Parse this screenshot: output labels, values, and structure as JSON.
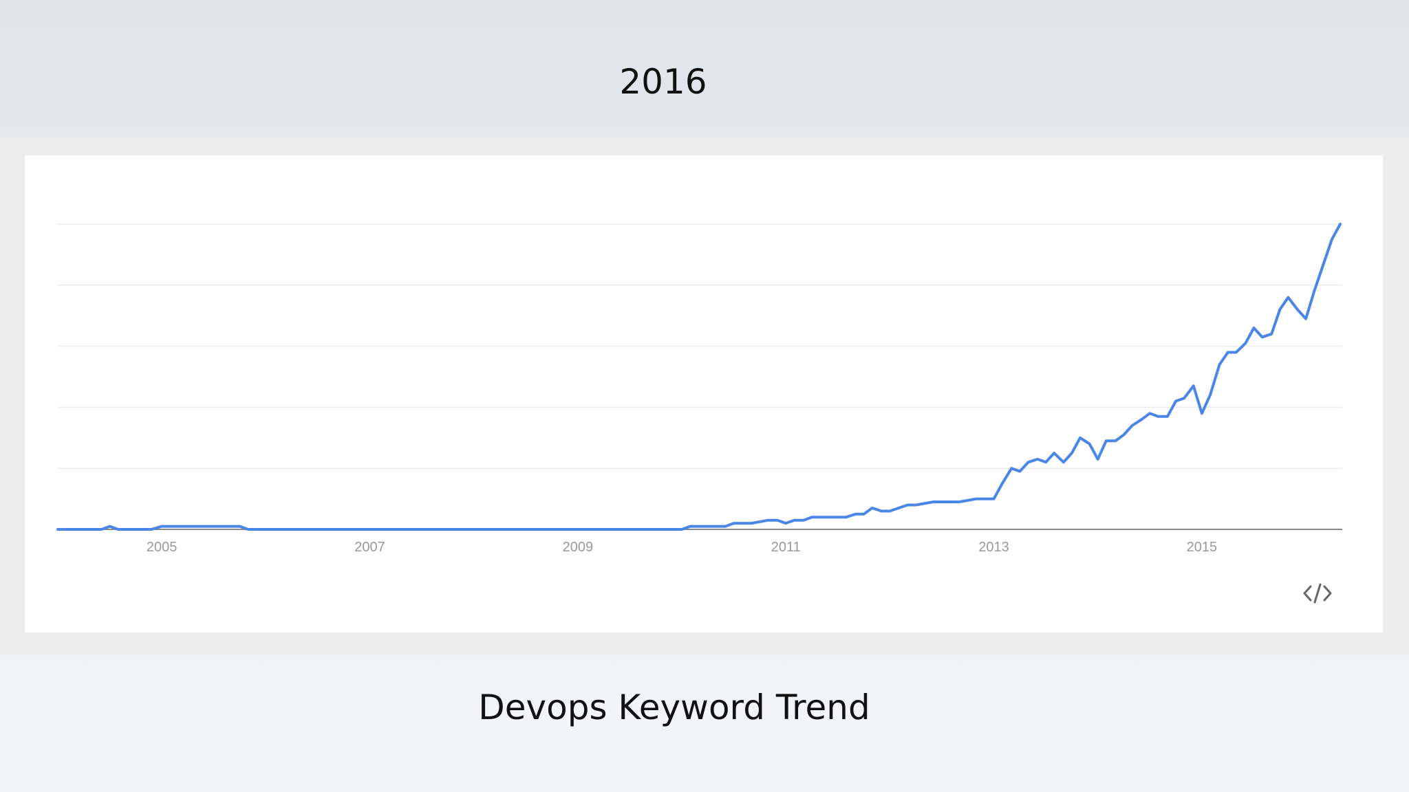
{
  "slide": {
    "title": "2016",
    "caption": "Devops Keyword Trend"
  },
  "icons": {
    "embed": "embed-code-icon"
  },
  "colors": {
    "line": "#4a86e8",
    "grid": "#ececec",
    "axis": "#888888",
    "tick_text": "#999999"
  },
  "chart_data": {
    "type": "line",
    "title": "",
    "xlabel": "",
    "ylabel": "",
    "grid": true,
    "xlim": [
      2004.0,
      2016.35
    ],
    "ylim": [
      0,
      100
    ],
    "xticks": [
      2005,
      2007,
      2009,
      2011,
      2013,
      2015
    ],
    "xtick_labels": [
      "2005",
      "2007",
      "2009",
      "2011",
      "2013",
      "2015"
    ],
    "series": [
      {
        "name": "",
        "x": [
          2004.0,
          2004.42,
          2004.5,
          2004.58,
          2004.67,
          2004.9,
          2005.0,
          2005.75,
          2005.83,
          2006.5,
          2007.5,
          2008.5,
          2009.5,
          2010.0,
          2010.08,
          2010.17,
          2010.42,
          2010.5,
          2010.67,
          2010.83,
          2010.92,
          2011.0,
          2011.08,
          2011.17,
          2011.25,
          2011.33,
          2011.42,
          2011.58,
          2011.67,
          2011.75,
          2011.83,
          2011.92,
          2012.0,
          2012.17,
          2012.25,
          2012.42,
          2012.5,
          2012.67,
          2012.83,
          2012.92,
          2013.0,
          2013.08,
          2013.17,
          2013.25,
          2013.33,
          2013.42,
          2013.5,
          2013.58,
          2013.67,
          2013.75,
          2013.83,
          2013.92,
          2014.0,
          2014.08,
          2014.17,
          2014.25,
          2014.33,
          2014.42,
          2014.5,
          2014.58,
          2014.67,
          2014.75,
          2014.83,
          2014.92,
          2015.0,
          2015.08,
          2015.17,
          2015.25,
          2015.33,
          2015.42,
          2015.5,
          2015.58,
          2015.67,
          2015.75,
          2015.83,
          2015.92,
          2016.0,
          2016.08,
          2016.17,
          2016.25,
          2016.33
        ],
        "values": [
          0,
          0,
          1,
          0,
          0,
          0,
          1,
          1,
          0,
          0,
          0,
          0,
          0,
          0,
          1,
          1,
          1,
          2,
          2,
          3,
          3,
          2,
          3,
          3,
          4,
          4,
          4,
          4,
          5,
          5,
          7,
          6,
          6,
          8,
          8,
          9,
          9,
          9,
          10,
          10,
          10,
          15,
          20,
          19,
          22,
          23,
          22,
          25,
          22,
          25,
          30,
          28,
          23,
          29,
          29,
          31,
          34,
          36,
          38,
          37,
          37,
          42,
          43,
          47,
          38,
          44,
          54,
          58,
          58,
          61,
          66,
          63,
          64,
          72,
          76,
          72,
          69,
          78,
          87,
          95,
          100
        ]
      }
    ]
  }
}
